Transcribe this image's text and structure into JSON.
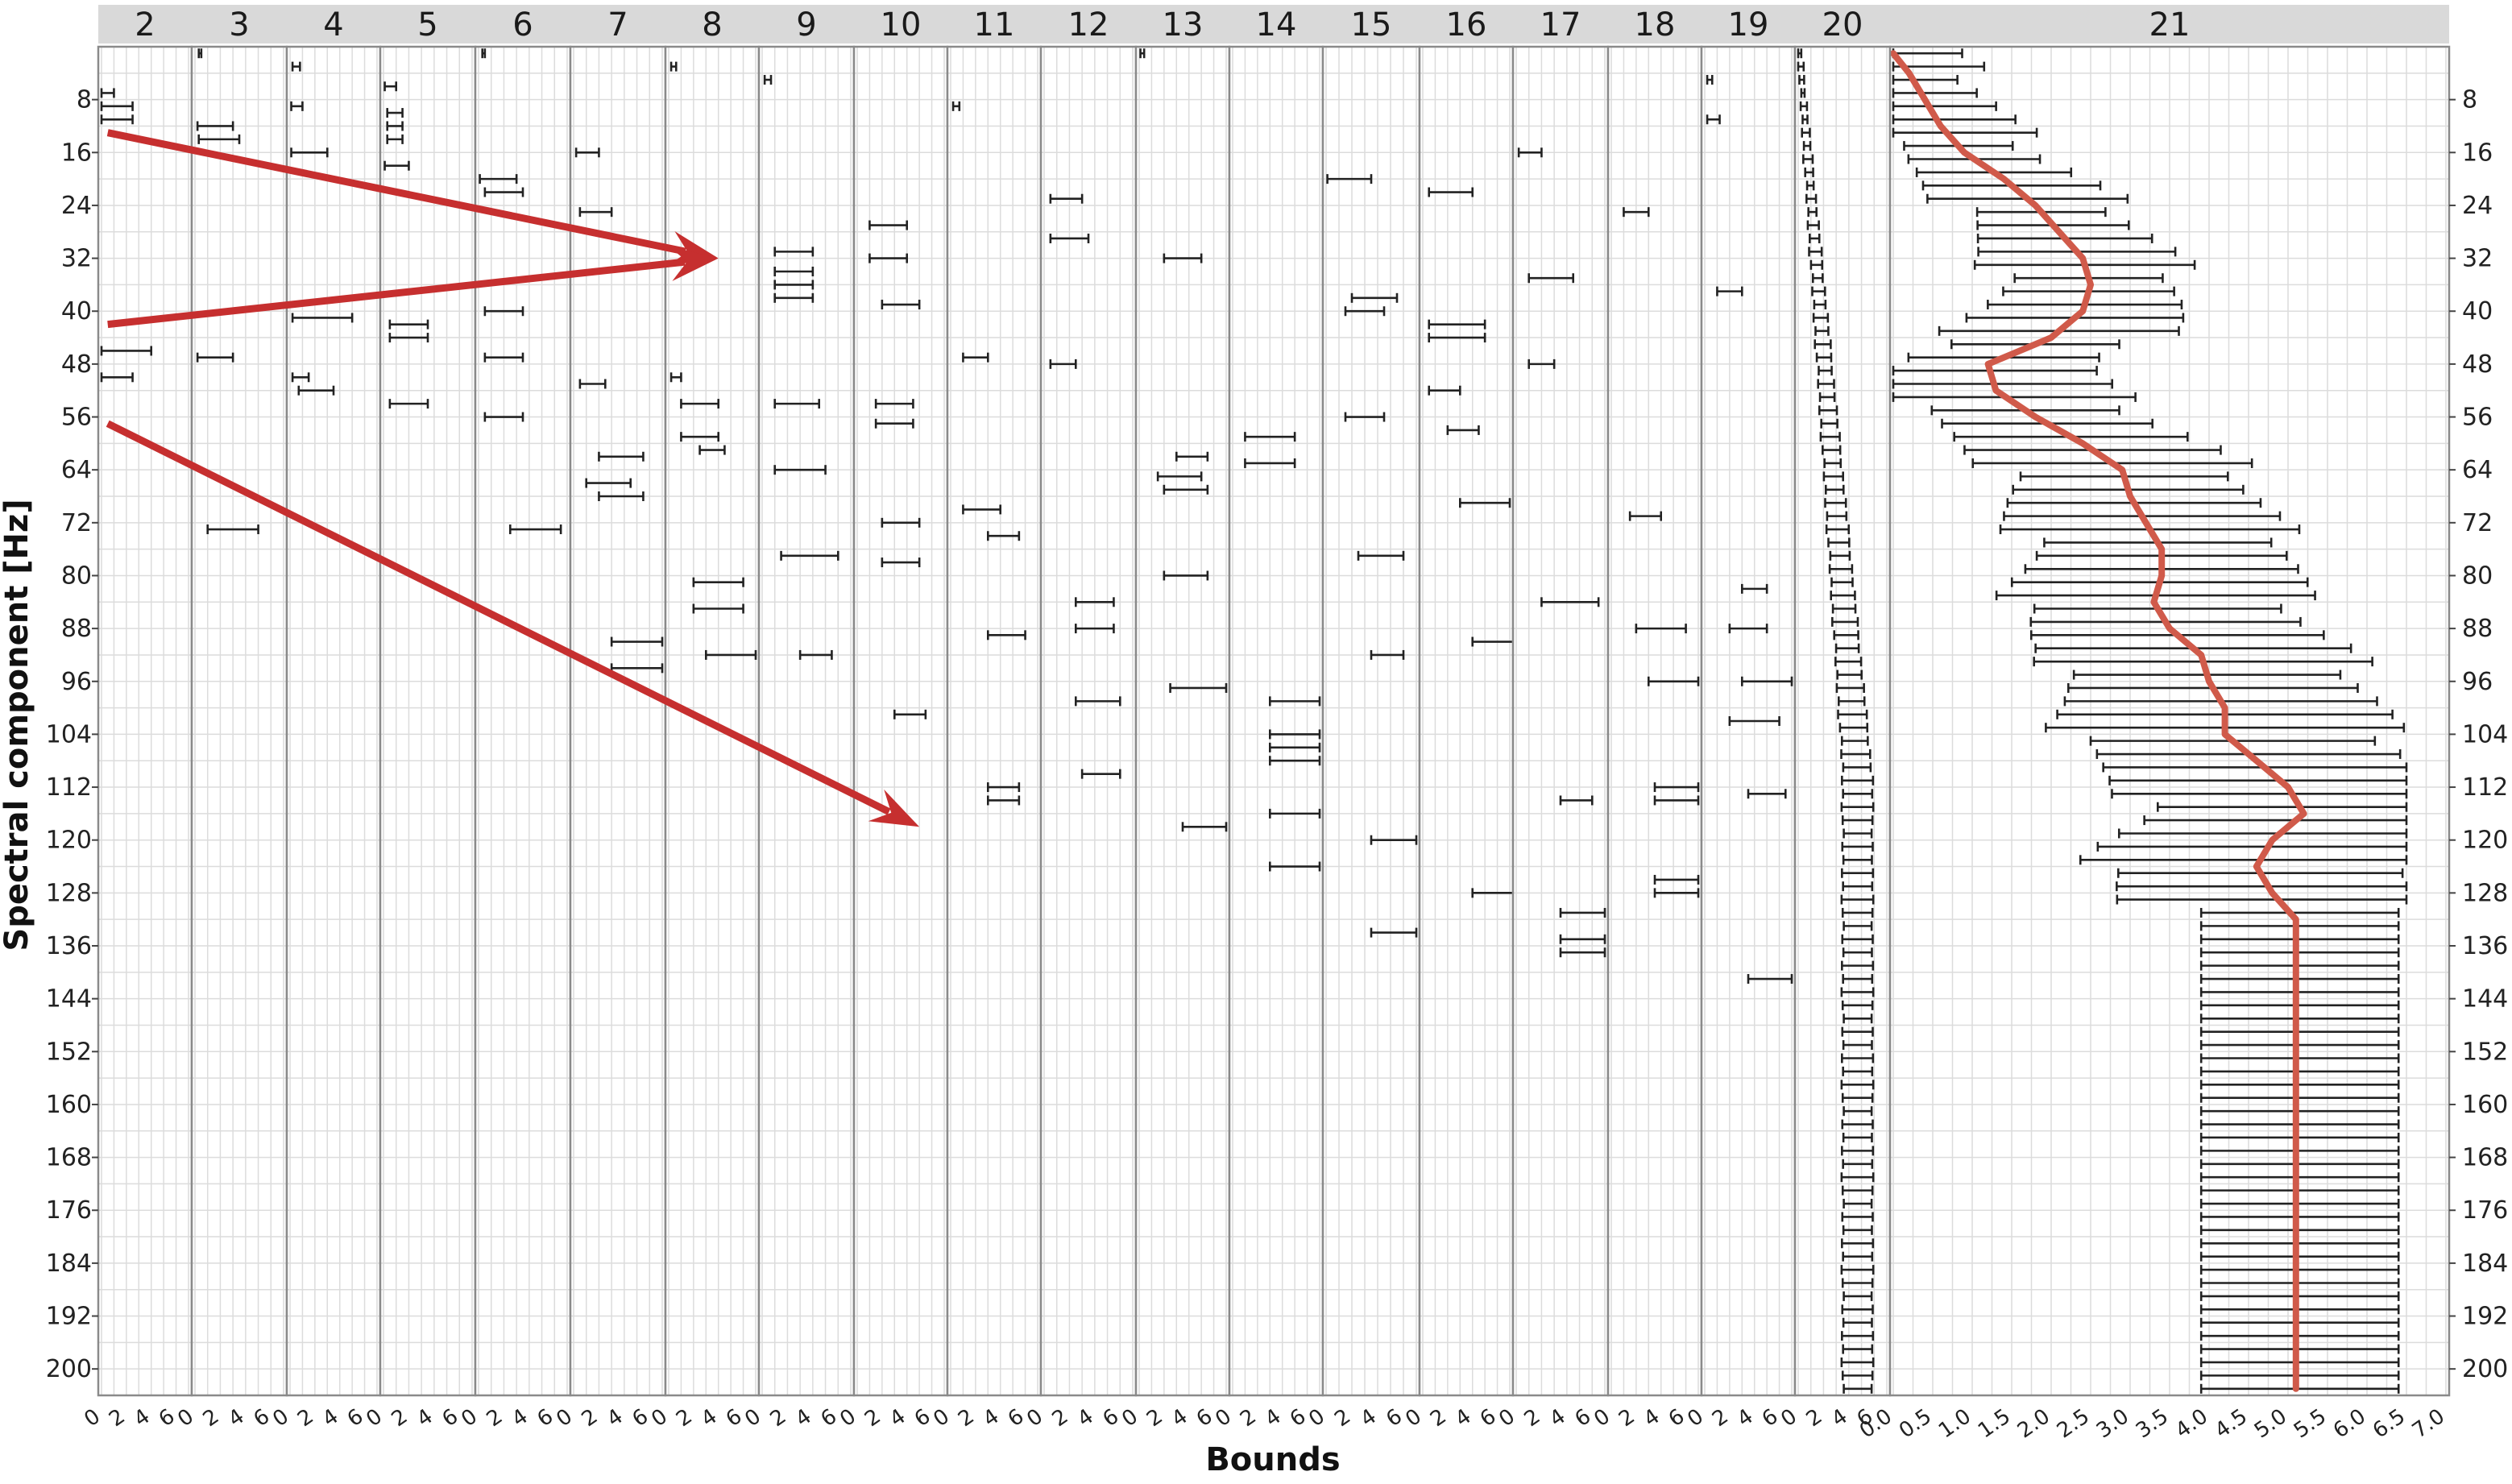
{
  "chart_data": {
    "type": "errorbar",
    "title": "",
    "xlabel": "Bounds",
    "ylabel": "Spectral component [Hz]",
    "ylim": [
      0,
      204
    ],
    "yticks": [
      8,
      16,
      24,
      32,
      40,
      48,
      56,
      64,
      72,
      80,
      88,
      96,
      104,
      112,
      120,
      128,
      136,
      144,
      152,
      160,
      168,
      176,
      184,
      192,
      200
    ],
    "grid": true,
    "facets": [
      {
        "label": "2",
        "xlim": [
          0,
          7
        ],
        "xticks": [
          0,
          2,
          4,
          6
        ],
        "intervals": [
          [
            7,
            0,
            1
          ],
          [
            9,
            0,
            2.5
          ],
          [
            11,
            0,
            2.5
          ],
          [
            46,
            0,
            4
          ],
          [
            50,
            0,
            2.5
          ]
        ]
      },
      {
        "label": "3",
        "xlim": [
          0,
          7
        ],
        "xticks": [
          0,
          2,
          4,
          6
        ],
        "intervals": [
          [
            1,
            0.3,
            0.5
          ],
          [
            12,
            0.2,
            3
          ],
          [
            14,
            0.3,
            3.5
          ],
          [
            47,
            0.2,
            3
          ],
          [
            73,
            1,
            5
          ]
        ]
      },
      {
        "label": "4",
        "xlim": [
          0,
          7
        ],
        "xticks": [
          0,
          2,
          4,
          6
        ],
        "intervals": [
          [
            3,
            0.2,
            0.8
          ],
          [
            9,
            0.1,
            1
          ],
          [
            16,
            0.1,
            3
          ],
          [
            41,
            0.2,
            5
          ],
          [
            50,
            0.2,
            1.5
          ],
          [
            52,
            0.7,
            3.5
          ]
        ]
      },
      {
        "label": "5",
        "xlim": [
          0,
          7
        ],
        "xticks": [
          0,
          2,
          4,
          6
        ],
        "intervals": [
          [
            6,
            0.1,
            1
          ],
          [
            10,
            0.3,
            1.5
          ],
          [
            12,
            0.3,
            1.5
          ],
          [
            14,
            0.3,
            1.5
          ],
          [
            18,
            0.1,
            2
          ],
          [
            42,
            0.5,
            3.5
          ],
          [
            44,
            0.5,
            3.5
          ],
          [
            54,
            0.5,
            3.5
          ]
        ]
      },
      {
        "label": "6",
        "xlim": [
          0,
          7
        ],
        "xticks": [
          0,
          2,
          4,
          6
        ],
        "intervals": [
          [
            1,
            0.3,
            0.5
          ],
          [
            20,
            0.1,
            3
          ],
          [
            22,
            0.5,
            3.5
          ],
          [
            40,
            0.5,
            3.5
          ],
          [
            47,
            0.5,
            3.5
          ],
          [
            56,
            0.5,
            3.5
          ],
          [
            73,
            2.5,
            6.5
          ]
        ]
      },
      {
        "label": "7",
        "xlim": [
          0,
          7
        ],
        "xticks": [
          0,
          2,
          4,
          6
        ],
        "intervals": [
          [
            16,
            0.2,
            2
          ],
          [
            25,
            0.5,
            3
          ],
          [
            51,
            0.5,
            2.5
          ],
          [
            62,
            2,
            5.5
          ],
          [
            66,
            1,
            4.5
          ],
          [
            68,
            2,
            5.5
          ],
          [
            90,
            3,
            7
          ],
          [
            94,
            3,
            7
          ]
        ]
      },
      {
        "label": "8",
        "xlim": [
          0,
          7
        ],
        "xticks": [
          0,
          2,
          4,
          6
        ],
        "intervals": [
          [
            3,
            0.2,
            0.6
          ],
          [
            50,
            0.2,
            1
          ],
          [
            54,
            1,
            4
          ],
          [
            59,
            1,
            4
          ],
          [
            61,
            2.5,
            4.5
          ],
          [
            81,
            2,
            6
          ],
          [
            85,
            2,
            6
          ],
          [
            92,
            3,
            7
          ]
        ]
      },
      {
        "label": "9",
        "xlim": [
          0,
          7
        ],
        "xticks": [
          0,
          2,
          4,
          6
        ],
        "intervals": [
          [
            5,
            0.2,
            0.7
          ],
          [
            31,
            1,
            4
          ],
          [
            34,
            1,
            4
          ],
          [
            36,
            1,
            4
          ],
          [
            38,
            1,
            4
          ],
          [
            54,
            1,
            4.5
          ],
          [
            64,
            1,
            5
          ],
          [
            77,
            1.5,
            6
          ],
          [
            92,
            3,
            5.5
          ]
        ]
      },
      {
        "label": "10",
        "xlim": [
          0,
          7
        ],
        "xticks": [
          0,
          2,
          4,
          6
        ],
        "intervals": [
          [
            27,
            1,
            4
          ],
          [
            32,
            1,
            4
          ],
          [
            39,
            2,
            5
          ],
          [
            54,
            1.5,
            4.5
          ],
          [
            57,
            1.5,
            4.5
          ],
          [
            72,
            2,
            5
          ],
          [
            78,
            2,
            5
          ],
          [
            101,
            3,
            5.5
          ]
        ]
      },
      {
        "label": "11",
        "xlim": [
          0,
          7
        ],
        "xticks": [
          0,
          2,
          4,
          6
        ],
        "intervals": [
          [
            9,
            0.2,
            0.7
          ],
          [
            47,
            1,
            3
          ],
          [
            70,
            1,
            4
          ],
          [
            74,
            3,
            5.5
          ],
          [
            89,
            3,
            6
          ],
          [
            112,
            3,
            5.5
          ],
          [
            114,
            3,
            5.5
          ]
        ]
      },
      {
        "label": "12",
        "xlim": [
          0,
          7
        ],
        "xticks": [
          0,
          2,
          4,
          6
        ],
        "intervals": [
          [
            23,
            0.5,
            3
          ],
          [
            29,
            0.5,
            3.5
          ],
          [
            48,
            0.5,
            2.5
          ],
          [
            84,
            2.5,
            5.5
          ],
          [
            88,
            2.5,
            5.5
          ],
          [
            99,
            2.5,
            6
          ],
          [
            110,
            3,
            6
          ]
        ]
      },
      {
        "label": "13",
        "xlim": [
          0,
          7
        ],
        "xticks": [
          0,
          2,
          4,
          6
        ],
        "intervals": [
          [
            1,
            0.1,
            0.4
          ],
          [
            32,
            2,
            5
          ],
          [
            62,
            3,
            5.5
          ],
          [
            65,
            1.5,
            5
          ],
          [
            67,
            2,
            5.5
          ],
          [
            80,
            2,
            5.5
          ],
          [
            97,
            2.5,
            7
          ],
          [
            118,
            3.5,
            7
          ]
        ]
      },
      {
        "label": "14",
        "xlim": [
          0,
          7
        ],
        "xticks": [
          0,
          2,
          4,
          6
        ],
        "intervals": [
          [
            59,
            1,
            5
          ],
          [
            63,
            1,
            5
          ],
          [
            99,
            3,
            7
          ],
          [
            104,
            3,
            7
          ],
          [
            106,
            3,
            7
          ],
          [
            108,
            3,
            7
          ],
          [
            116,
            3,
            7
          ],
          [
            124,
            3,
            7
          ]
        ]
      },
      {
        "label": "15",
        "xlim": [
          0,
          7
        ],
        "xticks": [
          0,
          2,
          4,
          6
        ],
        "intervals": [
          [
            20,
            0.1,
            3.5
          ],
          [
            38,
            2,
            5.5
          ],
          [
            40,
            1.5,
            4.5
          ],
          [
            56,
            1.5,
            4.5
          ],
          [
            77,
            2.5,
            6
          ],
          [
            92,
            3.5,
            6
          ],
          [
            120,
            3.5,
            7
          ],
          [
            134,
            3.5,
            7
          ]
        ]
      },
      {
        "label": "16",
        "xlim": [
          0,
          7
        ],
        "xticks": [
          0,
          2,
          4,
          6
        ],
        "intervals": [
          [
            22,
            0.5,
            4
          ],
          [
            42,
            0.5,
            5
          ],
          [
            44,
            0.5,
            5
          ],
          [
            52,
            0.5,
            3
          ],
          [
            58,
            2,
            4.5
          ],
          [
            69,
            3,
            7
          ],
          [
            90,
            4,
            8
          ],
          [
            128,
            4,
            8
          ]
        ]
      },
      {
        "label": "17",
        "xlim": [
          0,
          7
        ],
        "xticks": [
          0,
          2,
          4,
          6
        ],
        "intervals": [
          [
            16,
            0.2,
            2
          ],
          [
            35,
            1,
            4.5
          ],
          [
            48,
            1,
            3
          ],
          [
            84,
            2,
            6.5
          ],
          [
            114,
            3.5,
            6
          ],
          [
            131,
            3.5,
            7
          ],
          [
            135,
            3.5,
            7
          ],
          [
            137,
            3.5,
            7
          ]
        ]
      },
      {
        "label": "18",
        "xlim": [
          0,
          7
        ],
        "xticks": [
          0,
          2,
          4,
          6
        ],
        "intervals": [
          [
            25,
            1,
            3
          ],
          [
            71,
            1.5,
            4
          ],
          [
            88,
            2,
            6
          ],
          [
            96,
            3,
            7
          ],
          [
            112,
            3.5,
            7
          ],
          [
            114,
            3.5,
            7
          ],
          [
            126,
            3.5,
            7
          ],
          [
            128,
            3.5,
            7
          ]
        ]
      },
      {
        "label": "19",
        "xlim": [
          0,
          7
        ],
        "xticks": [
          0,
          2,
          4,
          6
        ],
        "intervals": [
          [
            5,
            0.2,
            0.6
          ],
          [
            11,
            0.2,
            1.2
          ],
          [
            37,
            1,
            3
          ],
          [
            82,
            3,
            5
          ],
          [
            88,
            2,
            5
          ],
          [
            96,
            3,
            7
          ],
          [
            102,
            2,
            6
          ],
          [
            113,
            3.5,
            6.5
          ],
          [
            141,
            3.5,
            7
          ]
        ]
      },
      {
        "label": "20",
        "xlim": [
          0,
          7
        ],
        "xticks": [
          0,
          2,
          4,
          6
        ],
        "intervals_note": "dense bars at every 2 Hz; left bound rising 0 to 4, right bound rising 0.1 to 6",
        "intervals_fn": {
          "ystart": 1,
          "yend": 203,
          "step": 2
        }
      },
      {
        "label": "21",
        "xlim": [
          0,
          7
        ],
        "xticks": [
          0.0,
          0.5,
          1.0,
          1.5,
          2.0,
          2.5,
          3.0,
          3.5,
          4.0,
          4.5,
          5.0,
          5.5,
          6.0,
          6.5,
          7.0
        ],
        "mean_line": [
          [
            1,
            0.0
          ],
          [
            4,
            0.2
          ],
          [
            8,
            0.4
          ],
          [
            12,
            0.6
          ],
          [
            16,
            0.9
          ],
          [
            20,
            1.4
          ],
          [
            24,
            1.8
          ],
          [
            28,
            2.1
          ],
          [
            32,
            2.4
          ],
          [
            36,
            2.5
          ],
          [
            40,
            2.4
          ],
          [
            44,
            2.0
          ],
          [
            48,
            1.2
          ],
          [
            52,
            1.3
          ],
          [
            56,
            1.8
          ],
          [
            60,
            2.4
          ],
          [
            64,
            2.9
          ],
          [
            68,
            3.0
          ],
          [
            72,
            3.2
          ],
          [
            76,
            3.4
          ],
          [
            80,
            3.4
          ],
          [
            84,
            3.3
          ],
          [
            88,
            3.5
          ],
          [
            92,
            3.9
          ],
          [
            96,
            4.0
          ],
          [
            100,
            4.2
          ],
          [
            104,
            4.2
          ],
          [
            108,
            4.6
          ],
          [
            112,
            5.0
          ],
          [
            116,
            5.2
          ],
          [
            120,
            4.8
          ],
          [
            124,
            4.6
          ],
          [
            128,
            4.8
          ],
          [
            132,
            5.1
          ],
          [
            200,
            5.1
          ],
          [
            203,
            5.1
          ]
        ]
      }
    ],
    "annotations": [
      {
        "type": "arrow",
        "from": {
          "facet": "2",
          "x": 0.5,
          "y": 13
        },
        "to": {
          "facet": "8",
          "x": 4,
          "y": 32
        },
        "color": "#c62f2f"
      },
      {
        "type": "arrow",
        "from": {
          "facet": "2",
          "x": 0.5,
          "y": 42
        },
        "to": {
          "facet": "8",
          "x": 4,
          "y": 32
        },
        "color": "#c62f2f"
      },
      {
        "type": "arrow",
        "from": {
          "facet": "2",
          "x": 0.5,
          "y": 57
        },
        "to": {
          "facet": "10",
          "x": 5,
          "y": 118
        },
        "color": "#c62f2f"
      }
    ],
    "colors": {
      "mean_line": "#d05a4a",
      "arrows": "#c62f2f",
      "strip": "#d9d9d9"
    }
  }
}
